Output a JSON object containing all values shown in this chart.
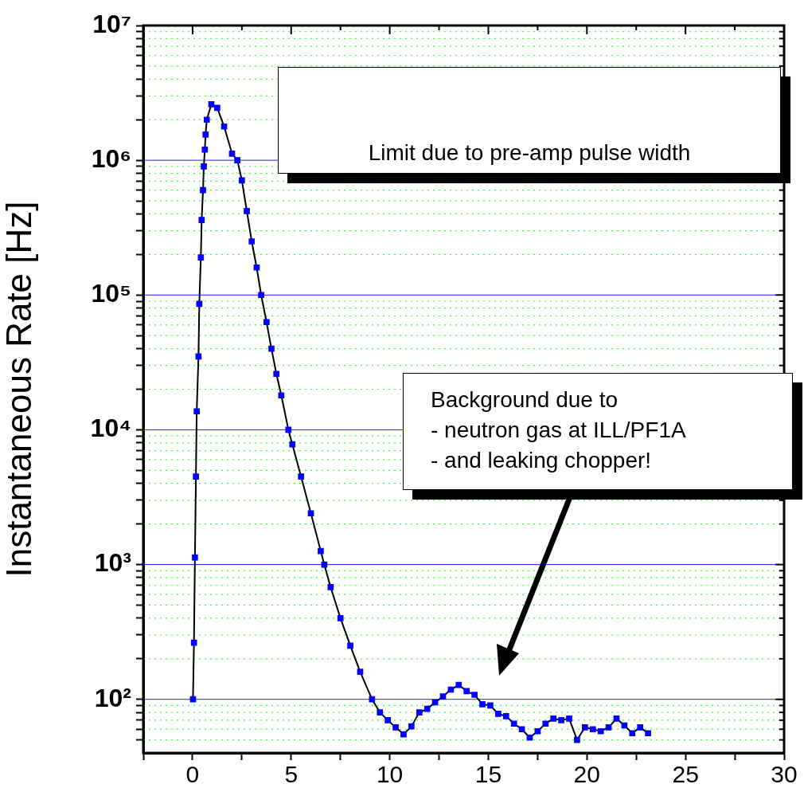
{
  "chart_data": {
    "type": "line",
    "ylabel": "Instantaneous Rate [Hz]",
    "log": "y",
    "grid": "y",
    "marker": "square",
    "line_style": "solid",
    "legend": false,
    "xlim": [
      -2.5,
      30
    ],
    "xticks": [
      {
        "value": -2.5,
        "label": null
      },
      0,
      {
        "value": 2.5,
        "label": null
      },
      5,
      {
        "value": 7.5,
        "label": null
      },
      10,
      {
        "value": 12.5,
        "label": null
      },
      15,
      {
        "value": 17.5,
        "label": null
      },
      20,
      {
        "value": 22.5,
        "label": null
      },
      25,
      {
        "value": 27.5,
        "label": null
      },
      30
    ],
    "ylim": [
      40,
      10000000
    ],
    "yticks": [
      {
        "value": 50,
        "label": null
      },
      {
        "value": 60,
        "label": null
      },
      {
        "value": 70,
        "label": null
      },
      {
        "value": 80,
        "label": null
      },
      {
        "value": 90,
        "label": null
      },
      {
        "value": 100,
        "label": "10²"
      },
      {
        "value": 200,
        "label": null
      },
      {
        "value": 300,
        "label": null
      },
      {
        "value": 400,
        "label": null
      },
      {
        "value": 500,
        "label": null
      },
      {
        "value": 600,
        "label": null
      },
      {
        "value": 700,
        "label": null
      },
      {
        "value": 800,
        "label": null
      },
      {
        "value": 900,
        "label": null
      },
      {
        "value": 1000,
        "label": "10³"
      },
      {
        "value": 2000,
        "label": null
      },
      {
        "value": 3000,
        "label": null
      },
      {
        "value": 4000,
        "label": null
      },
      {
        "value": 5000,
        "label": null
      },
      {
        "value": 6000,
        "label": null
      },
      {
        "value": 7000,
        "label": null
      },
      {
        "value": 8000,
        "label": null
      },
      {
        "value": 9000,
        "label": null
      },
      {
        "value": 10000,
        "label": "10⁴"
      },
      {
        "value": 20000,
        "label": null
      },
      {
        "value": 30000,
        "label": null
      },
      {
        "value": 40000,
        "label": null
      },
      {
        "value": 50000,
        "label": null
      },
      {
        "value": 60000,
        "label": null
      },
      {
        "value": 70000,
        "label": null
      },
      {
        "value": 80000,
        "label": null
      },
      {
        "value": 90000,
        "label": null
      },
      {
        "value": 100000,
        "label": "10⁵"
      },
      {
        "value": 200000,
        "label": null
      },
      {
        "value": 300000,
        "label": null
      },
      {
        "value": 400000,
        "label": null
      },
      {
        "value": 500000,
        "label": null
      },
      {
        "value": 600000,
        "label": null
      },
      {
        "value": 700000,
        "label": null
      },
      {
        "value": 800000,
        "label": null
      },
      {
        "value": 900000,
        "label": null
      },
      {
        "value": 1000000,
        "label": "10⁶"
      },
      {
        "value": 2000000,
        "label": null
      },
      {
        "value": 3000000,
        "label": null
      },
      {
        "value": 4000000,
        "label": null
      },
      {
        "value": 5000000,
        "label": null
      },
      {
        "value": 6000000,
        "label": null
      },
      {
        "value": 7000000,
        "label": null
      },
      {
        "value": 8000000,
        "label": null
      },
      {
        "value": 9000000,
        "label": null
      },
      {
        "value": 10000000,
        "label": "10⁷"
      }
    ],
    "annotations": [
      "Limit due to pre-amp pulse width",
      "Background due to\n- neutron gas at ILL/PF1A\n- and leaking chopper!"
    ],
    "series": [
      {
        "color": "#0000ff",
        "x": [
          0.02,
          0.07,
          0.12,
          0.17,
          0.21,
          0.3,
          0.34,
          0.42,
          0.46,
          0.53,
          0.57,
          0.62,
          0.66,
          0.72,
          0.95,
          1.25,
          1.6,
          2.0,
          2.27,
          2.5,
          2.75,
          3.0,
          3.25,
          3.48,
          3.75,
          4.0,
          4.25,
          4.5,
          4.86,
          5.06,
          5.5,
          6.0,
          6.5,
          6.68,
          7.0,
          7.5,
          8.0,
          8.5,
          9.1,
          9.5,
          9.9,
          10.3,
          10.7,
          11.1,
          11.5,
          11.9,
          12.3,
          12.7,
          13.1,
          13.5,
          13.9,
          14.3,
          14.7,
          15.1,
          15.5,
          15.9,
          16.3,
          16.7,
          17.1,
          17.5,
          17.9,
          18.3,
          18.7,
          19.1,
          19.5,
          19.9,
          20.3,
          20.7,
          21.1,
          21.5,
          21.9,
          22.3,
          22.7,
          23.1
        ],
        "values": [
          100,
          263,
          1130,
          4500,
          13700,
          35000,
          86000,
          190000,
          360000,
          600000,
          900000,
          1200000,
          1550000,
          2000000,
          2600000,
          2450000,
          1780000,
          1120000,
          1000000,
          710000,
          420000,
          250000,
          160000,
          100000,
          63000,
          40000,
          26000,
          18000,
          10000,
          7800,
          4500,
          2400,
          1260,
          1000,
          680,
          400,
          250,
          160,
          100,
          80,
          70,
          62,
          55,
          63,
          80,
          85,
          95,
          105,
          118,
          128,
          115,
          108,
          92,
          90,
          78,
          75,
          66,
          60,
          52,
          58,
          66,
          72,
          70,
          72,
          50,
          62,
          60,
          58,
          62,
          72,
          64,
          56,
          62,
          56
        ]
      }
    ]
  }
}
